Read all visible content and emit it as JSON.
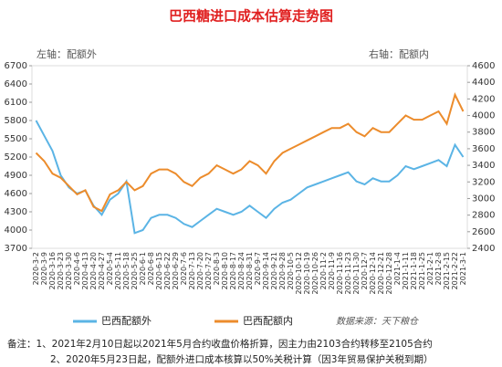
{
  "chart_data": {
    "type": "line",
    "title": "巴西糖进口成本估算走势图",
    "left_axis_label": "左轴：配额外",
    "right_axis_label": "右轴：配额内",
    "categories": [
      "2020-3-2",
      "2020-3-9",
      "2020-3-16",
      "2020-3-23",
      "2020-3-30",
      "2020-4-6",
      "2020-4-13",
      "2020-4-20",
      "2020-4-27",
      "2020-5-4",
      "2020-5-11",
      "2020-5-18",
      "2020-5-25",
      "2020-6-1",
      "2020-6-8",
      "2020-6-15",
      "2020-6-22",
      "2020-6-29",
      "2020-7-6",
      "2020-7-13",
      "2020-7-20",
      "2020-7-27",
      "2020-8-3",
      "2020-8-10",
      "2020-8-17",
      "2020-8-24",
      "2020-8-31",
      "2020-9-7",
      "2020-9-14",
      "2020-9-21",
      "2020-9-28",
      "2020-10-5",
      "2020-10-12",
      "2020-10-19",
      "2020-10-26",
      "2020-11-2",
      "2020-11-9",
      "2020-11-16",
      "2020-11-23",
      "2020-11-30",
      "2020-12-7",
      "2020-12-14",
      "2020-12-21",
      "2020-12-28",
      "2021-1-4",
      "2021-1-11",
      "2021-1-18",
      "2021-1-25",
      "2021-2-1",
      "2021-2-8",
      "2021-2-15",
      "2021-2-22",
      "2021-3-1"
    ],
    "series": [
      {
        "name": "巴西配额外",
        "color": "#5bb4e5",
        "axis": "y",
        "values": [
          5800,
          5550,
          5300,
          4900,
          4700,
          4600,
          4650,
          4400,
          4250,
          4500,
          4600,
          4800,
          3950,
          4000,
          4200,
          4250,
          4250,
          4200,
          4100,
          4050,
          4150,
          4250,
          4350,
          4300,
          4250,
          4300,
          4400,
          4300,
          4200,
          4350,
          4450,
          4500,
          4600,
          4700,
          4750,
          4800,
          4850,
          4900,
          4950,
          4800,
          4750,
          4850,
          4800,
          4800,
          4900,
          5050,
          5000,
          5050,
          5100,
          5150,
          5050,
          5400,
          5200
        ]
      },
      {
        "name": "巴西配额内",
        "color": "#ec8c2c",
        "axis": "y2",
        "values": [
          3550,
          3450,
          3300,
          3250,
          3150,
          3050,
          3100,
          2900,
          2850,
          3050,
          3100,
          3200,
          3100,
          3150,
          3300,
          3350,
          3350,
          3300,
          3200,
          3150,
          3250,
          3300,
          3400,
          3350,
          3300,
          3350,
          3450,
          3400,
          3300,
          3450,
          3550,
          3600,
          3650,
          3700,
          3750,
          3800,
          3850,
          3850,
          3900,
          3800,
          3750,
          3850,
          3800,
          3800,
          3900,
          4000,
          3950,
          3950,
          4000,
          4050,
          3900,
          4250,
          4050
        ]
      }
    ],
    "ylim": [
      3700,
      6700
    ],
    "yticks": [
      3700,
      4000,
      4300,
      4600,
      4900,
      5200,
      5500,
      5800,
      6100,
      6400,
      6700
    ],
    "y2lim": [
      2400,
      4600
    ],
    "y2ticks": [
      2400,
      2600,
      2800,
      3000,
      3200,
      3400,
      3600,
      3800,
      4000,
      4200,
      4400,
      4600
    ],
    "source": "数据来源：天下粮仓",
    "notes": [
      "备注：1、2021年2月10日起以2021年5月合约收盘价格折算，因主力由2103合约转移至2105合约",
      "2、2020年5月23日起，配额外进口成本核算以50%关税计算（因3年贸易保护关税到期）"
    ]
  }
}
